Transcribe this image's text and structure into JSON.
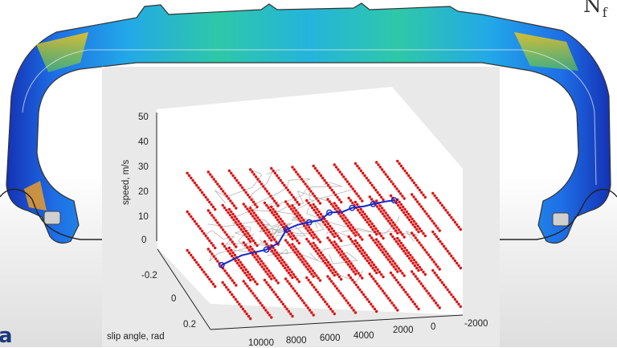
{
  "corner_label": {
    "main": "N",
    "sub": "f"
  },
  "colors": {
    "sweep_points": "#e01010",
    "trajectory": "#1428c8",
    "background_paths": "#b4b4b4",
    "panel": "#e9e9e9",
    "plot_floor": "#ffffff"
  },
  "chart_data": {
    "type": "scatter",
    "title": "",
    "xlabel": "",
    "ylabel": "slip angle, rad",
    "zlabel": "speed, m/s",
    "x_ticks": [
      "10000",
      "8000",
      "6000",
      "4000",
      "2000",
      "0",
      "-2000"
    ],
    "y_ticks": [
      "-0.2",
      "0",
      "0.2"
    ],
    "z_ticks": [
      "0",
      "10",
      "20",
      "30",
      "40",
      "50"
    ],
    "xlim": [
      -2000,
      10000
    ],
    "ylim": [
      -0.3,
      0.3
    ],
    "zlim": [
      0,
      50
    ],
    "grid": false,
    "series": [
      {
        "style": "red-dots",
        "points": [
          [
            -1000,
            -0.2,
            30
          ],
          [
            0,
            -0.2,
            30
          ],
          [
            1000,
            -0.2,
            30
          ],
          [
            2000,
            -0.2,
            30
          ],
          [
            3000,
            -0.2,
            30
          ],
          [
            4000,
            -0.2,
            30
          ],
          [
            5000,
            -0.2,
            30
          ],
          [
            6000,
            -0.2,
            30
          ],
          [
            7000,
            -0.2,
            30
          ],
          [
            8000,
            -0.2,
            30
          ],
          [
            9000,
            -0.2,
            30
          ],
          [
            -1000,
            0.2,
            30
          ],
          [
            0,
            0.2,
            30
          ],
          [
            1000,
            0.2,
            30
          ],
          [
            2000,
            0.2,
            30
          ],
          [
            3000,
            0.2,
            30
          ],
          [
            4000,
            0.2,
            30
          ],
          [
            5000,
            0.2,
            30
          ],
          [
            6000,
            0.2,
            30
          ],
          [
            7000,
            0.2,
            30
          ],
          [
            8000,
            0.2,
            30
          ],
          [
            9000,
            0.2,
            30
          ],
          [
            -1000,
            -0.2,
            15
          ],
          [
            0,
            -0.2,
            15
          ],
          [
            1000,
            -0.2,
            15
          ],
          [
            2000,
            -0.2,
            15
          ],
          [
            3000,
            -0.2,
            15
          ],
          [
            4000,
            -0.2,
            15
          ],
          [
            5000,
            -0.2,
            15
          ],
          [
            6000,
            -0.2,
            15
          ],
          [
            7000,
            -0.2,
            15
          ],
          [
            8000,
            -0.2,
            15
          ],
          [
            9000,
            -0.2,
            15
          ],
          [
            -1000,
            0.2,
            15
          ],
          [
            0,
            0.2,
            15
          ],
          [
            1000,
            0.2,
            15
          ],
          [
            2000,
            0.2,
            15
          ],
          [
            3000,
            0.2,
            15
          ],
          [
            4000,
            0.2,
            15
          ],
          [
            5000,
            0.2,
            15
          ],
          [
            6000,
            0.2,
            15
          ],
          [
            7000,
            0.2,
            15
          ],
          [
            8000,
            0.2,
            15
          ],
          [
            9000,
            0.2,
            15
          ],
          [
            -1000,
            -0.2,
            0
          ],
          [
            0,
            -0.2,
            0
          ],
          [
            1000,
            -0.2,
            0
          ],
          [
            2000,
            -0.2,
            0
          ],
          [
            3000,
            -0.2,
            0
          ],
          [
            4000,
            -0.2,
            0
          ],
          [
            5000,
            -0.2,
            0
          ],
          [
            6000,
            -0.2,
            0
          ],
          [
            7000,
            -0.2,
            0
          ],
          [
            8000,
            -0.2,
            0
          ],
          [
            9000,
            -0.2,
            0
          ],
          [
            -1000,
            0.2,
            0
          ],
          [
            0,
            0.2,
            0
          ],
          [
            1000,
            0.2,
            0
          ],
          [
            2000,
            0.2,
            0
          ],
          [
            3000,
            0.2,
            0
          ],
          [
            4000,
            0.2,
            0
          ],
          [
            5000,
            0.2,
            0
          ],
          [
            6000,
            0.2,
            0
          ],
          [
            7000,
            0.2,
            0
          ],
          [
            8000,
            0.2,
            0
          ],
          [
            9000,
            0.2,
            0
          ]
        ]
      },
      {
        "style": "blue-line-circles",
        "points": [
          [
            8000,
            -0.05,
            6
          ],
          [
            7000,
            -0.06,
            9
          ],
          [
            6000,
            -0.02,
            12
          ],
          [
            5500,
            0.0,
            15
          ],
          [
            5000,
            -0.03,
            19
          ],
          [
            4500,
            -0.02,
            21
          ],
          [
            4000,
            -0.01,
            22
          ],
          [
            3500,
            0.0,
            23
          ],
          [
            3000,
            -0.02,
            25
          ],
          [
            2500,
            0.01,
            26
          ],
          [
            2000,
            0.0,
            27
          ],
          [
            1500,
            0.02,
            28
          ],
          [
            1000,
            0.0,
            28
          ],
          [
            500,
            0.01,
            29
          ],
          [
            0,
            0.0,
            29
          ]
        ]
      }
    ]
  }
}
